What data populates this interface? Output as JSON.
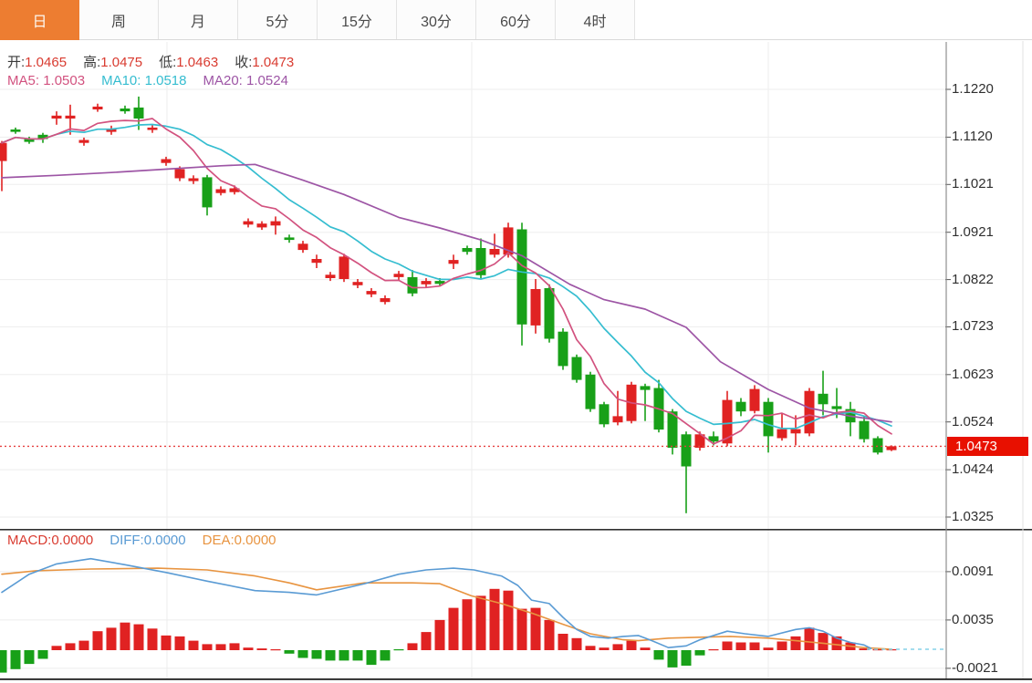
{
  "tab_bar": {
    "tabs": [
      {
        "name": "day",
        "label": "日",
        "active": true
      },
      {
        "name": "week",
        "label": "周",
        "active": false
      },
      {
        "name": "month",
        "label": "月",
        "active": false
      },
      {
        "name": "5min",
        "label": "5分",
        "active": false
      },
      {
        "name": "15min",
        "label": "15分",
        "active": false
      },
      {
        "name": "30min",
        "label": "30分",
        "active": false
      },
      {
        "name": "60min",
        "label": "60分",
        "active": false
      },
      {
        "name": "4hour",
        "label": "4时",
        "active": false
      }
    ]
  },
  "main_chart": {
    "legend": {
      "open_label": "开:",
      "open": "1.0465",
      "high_label": "高:",
      "high": "1.0475",
      "low_label": "低:",
      "low": "1.0463",
      "close_label": "收:",
      "close": "1.0473"
    },
    "ma_legend": {
      "ma5_label": "MA5:",
      "ma5": "1.0503",
      "ma10_label": "MA10:",
      "ma10": "1.0518",
      "ma20_label": "MA20:",
      "ma20": "1.0524"
    },
    "last_price_tag": "1.0473"
  },
  "macd_panel": {
    "legend": {
      "macd_label": "MACD:",
      "macd": "0.0000",
      "diff_label": "DIFF:",
      "diff": "0.0000",
      "dea_label": "DEA:",
      "dea": "0.0000"
    }
  },
  "colors": {
    "accent_orange": "#ed7d31",
    "up_red": "#e02222",
    "down_green": "#18a018",
    "ma5_pink": "#d2527f",
    "ma10_cyan": "#35bdd0",
    "ma20_purple": "#9d55a5",
    "diff_blue": "#5a9bd4",
    "dea_orange": "#e89440",
    "value_red": "#d93b30",
    "grid": "#ededed",
    "axis": "#909090",
    "price_line_red": "#e64040",
    "tag_red": "#e81000",
    "dashed_zero": "#85d2e8",
    "panel_divider": "#2f2f2f"
  },
  "chart_data": [
    {
      "type": "candlestick",
      "title": "EUR daily candlestick panel",
      "y_ticks": [
        1.122,
        1.112,
        1.1021,
        1.0921,
        1.0822,
        1.0723,
        1.0623,
        1.0524,
        1.0424,
        1.0325
      ],
      "price_line": 1.0473,
      "candles": [
        [
          1.107,
          1.1112,
          1.1007,
          1.1108
        ],
        [
          1.1136,
          1.114,
          1.1127,
          1.1131
        ],
        [
          1.1117,
          1.1121,
          1.1106,
          1.111
        ],
        [
          1.1125,
          1.1129,
          1.1108,
          1.1116
        ],
        [
          1.1159,
          1.1174,
          1.1146,
          1.1165
        ],
        [
          1.1159,
          1.1188,
          1.1125,
          1.1165
        ],
        [
          1.1108,
          1.1119,
          1.1102,
          1.1114
        ],
        [
          1.1178,
          1.119,
          1.1173,
          1.1184
        ],
        [
          1.1131,
          1.1144,
          1.1125,
          1.1138
        ],
        [
          1.118,
          1.1186,
          1.1169,
          1.1174
        ],
        [
          1.1182,
          1.1205,
          1.1135,
          1.1159
        ],
        [
          1.1135,
          1.1146,
          1.1129,
          1.114
        ],
        [
          1.1066,
          1.1079,
          1.106,
          1.1074
        ],
        [
          1.1034,
          1.1059,
          1.1028,
          1.1053
        ],
        [
          1.1028,
          1.104,
          1.1022,
          1.1034
        ],
        [
          1.1036,
          1.1041,
          1.0956,
          1.0973
        ],
        [
          1.1003,
          1.1017,
          1.0998,
          1.1011
        ],
        [
          1.1005,
          1.1019,
          1.1,
          1.1013
        ],
        [
          1.0937,
          1.095,
          1.0931,
          1.0944
        ],
        [
          1.0931,
          1.0944,
          1.0926,
          1.0939
        ],
        [
          1.0935,
          1.0954,
          1.0916,
          1.0944
        ],
        [
          1.091,
          1.0916,
          1.0899,
          1.0905
        ],
        [
          1.0884,
          1.0903,
          1.0878,
          1.0897
        ],
        [
          1.0857,
          1.0874,
          1.0846,
          1.0865
        ],
        [
          1.0825,
          1.0838,
          1.0819,
          1.0832
        ],
        [
          1.0823,
          1.0876,
          1.0817,
          1.087
        ],
        [
          1.081,
          1.0823,
          1.0804,
          1.0817
        ],
        [
          1.0791,
          1.0804,
          1.0785,
          1.0798
        ],
        [
          1.0775,
          1.0789,
          1.077,
          1.0783
        ],
        [
          1.0827,
          1.084,
          1.0821,
          1.0834
        ],
        [
          1.0827,
          1.0842,
          1.0787,
          1.0793
        ],
        [
          1.0812,
          1.0825,
          1.0806,
          1.0819
        ],
        [
          1.0819,
          1.0825,
          1.0808,
          1.0813
        ],
        [
          1.0855,
          1.0874,
          1.0844,
          1.0863
        ],
        [
          1.0888,
          1.0893,
          1.0874,
          1.088
        ],
        [
          1.0888,
          1.0908,
          1.0825,
          1.0831
        ],
        [
          1.0874,
          1.0918,
          1.0868,
          1.0886
        ],
        [
          1.0874,
          1.0941,
          1.0868,
          1.0931
        ],
        [
          1.0927,
          1.0941,
          1.0684,
          1.0728
        ],
        [
          1.0726,
          1.0823,
          1.0709,
          1.0802
        ],
        [
          1.0804,
          1.0812,
          1.069,
          1.0698
        ],
        [
          1.0713,
          1.072,
          1.0633,
          1.0641
        ],
        [
          1.066,
          1.0665,
          1.0606,
          1.0612
        ],
        [
          1.0623,
          1.0629,
          1.0545,
          1.0551
        ],
        [
          1.0561,
          1.0566,
          1.0513,
          1.0519
        ],
        [
          1.0523,
          1.0589,
          1.0517,
          1.0536
        ],
        [
          1.0526,
          1.0608,
          1.0521,
          1.0602
        ],
        [
          1.0599,
          1.0604,
          1.0526,
          1.0591
        ],
        [
          1.0595,
          1.0612,
          1.0502,
          1.0508
        ],
        [
          1.0546,
          1.0551,
          1.0456,
          1.047
        ],
        [
          1.0498,
          1.0504,
          1.0333,
          1.0431
        ],
        [
          1.047,
          1.0504,
          1.0464,
          1.0498
        ],
        [
          1.0494,
          1.0504,
          1.0475,
          1.0483
        ],
        [
          1.0479,
          1.0589,
          1.0473,
          1.057
        ],
        [
          1.0566,
          1.0574,
          1.0536,
          1.0546
        ],
        [
          1.0547,
          1.0601,
          1.0542,
          1.0593
        ],
        [
          1.0566,
          1.0574,
          1.046,
          1.0494
        ],
        [
          1.049,
          1.0542,
          1.0485,
          1.0509
        ],
        [
          1.05,
          1.0538,
          1.0475,
          1.0509
        ],
        [
          1.05,
          1.0595,
          1.0494,
          1.0589
        ],
        [
          1.0583,
          1.0631,
          1.0538,
          1.0561
        ],
        [
          1.0557,
          1.0595,
          1.0532,
          1.0551
        ],
        [
          1.0551,
          1.0566,
          1.0494,
          1.0523
        ],
        [
          1.0526,
          1.0536,
          1.0481,
          1.0488
        ],
        [
          1.049,
          1.0494,
          1.0456,
          1.046
        ],
        [
          1.0465,
          1.0475,
          1.0463,
          1.0473
        ]
      ],
      "ma_series": [
        {
          "name": "MA5",
          "period": 5,
          "computed_from_closes": true
        },
        {
          "name": "MA10",
          "period": 10,
          "computed_from_closes": true
        },
        {
          "name": "MA20",
          "points": [
            [
              0,
              1.1035
            ],
            [
              4,
              1.104
            ],
            [
              8,
              1.1046
            ],
            [
              12,
              1.1053
            ],
            [
              16,
              1.106
            ],
            [
              18.5,
              1.1063
            ],
            [
              22,
              1.103
            ],
            [
              25,
              1.1
            ],
            [
              29,
              1.0952
            ],
            [
              32,
              1.093
            ],
            [
              35,
              1.0905
            ],
            [
              38,
              1.0872
            ],
            [
              41.5,
              1.0812
            ],
            [
              44,
              1.078
            ],
            [
              47,
              1.076
            ],
            [
              50,
              1.0722
            ],
            [
              52.5,
              1.065
            ],
            [
              56,
              1.0592
            ],
            [
              59,
              1.0553
            ],
            [
              62,
              1.0536
            ],
            [
              65,
              1.0524
            ]
          ]
        }
      ]
    },
    {
      "type": "macd",
      "y_ticks": [
        0.0091,
        0.0035,
        -0.0021
      ],
      "hist": [
        -0.0026,
        -0.0022,
        -0.0016,
        -0.001,
        0.0005,
        0.0008,
        0.0011,
        0.0022,
        0.0026,
        0.0032,
        0.003,
        0.0025,
        0.0017,
        0.0016,
        0.0011,
        0.0007,
        0.0007,
        0.0008,
        0.0003,
        0.0002,
        0.0001,
        -0.0004,
        -0.0009,
        -0.001,
        -0.0012,
        -0.0012,
        -0.0012,
        -0.0017,
        -0.0012,
        -0.0001,
        0.0008,
        0.0021,
        0.0035,
        0.0049,
        0.0059,
        0.0063,
        0.0071,
        0.0069,
        0.0048,
        0.0049,
        0.0035,
        0.0019,
        0.0014,
        0.0005,
        0.0003,
        0.0007,
        0.0011,
        0.0003,
        -0.0011,
        -0.002,
        -0.0018,
        -0.0006,
        0.0,
        0.001,
        0.0009,
        0.0009,
        0.0003,
        0.001,
        0.0016,
        0.0026,
        0.002,
        0.0016,
        0.0009,
        0.0002,
        0.0,
        0.0
      ],
      "diff": [
        [
          0,
          0.0067
        ],
        [
          2,
          0.0088
        ],
        [
          4,
          0.01
        ],
        [
          6.5,
          0.0106
        ],
        [
          9,
          0.0099
        ],
        [
          12,
          0.009
        ],
        [
          15,
          0.008
        ],
        [
          18.5,
          0.0069
        ],
        [
          21,
          0.0067
        ],
        [
          23,
          0.0064
        ],
        [
          26.5,
          0.0077
        ],
        [
          29,
          0.0088
        ],
        [
          31,
          0.0093
        ],
        [
          33,
          0.0095
        ],
        [
          34.5,
          0.0093
        ],
        [
          36.5,
          0.0086
        ],
        [
          37.7,
          0.0075
        ],
        [
          38.7,
          0.0058
        ],
        [
          40,
          0.0054
        ],
        [
          41,
          0.0038
        ],
        [
          42,
          0.0024
        ],
        [
          43,
          0.0016
        ],
        [
          44.3,
          0.0014
        ],
        [
          45.4,
          0.0016
        ],
        [
          46.5,
          0.0017
        ],
        [
          47.5,
          0.0011
        ],
        [
          48.7,
          0.0003
        ],
        [
          50,
          0.0005
        ],
        [
          51,
          0.0012
        ],
        [
          53,
          0.0022
        ],
        [
          54.3,
          0.0019
        ],
        [
          56,
          0.0016
        ],
        [
          58,
          0.0024
        ],
        [
          59,
          0.0026
        ],
        [
          60,
          0.0022
        ],
        [
          61,
          0.0014
        ],
        [
          62,
          0.0009
        ],
        [
          63,
          0.0006
        ],
        [
          63.5,
          0.0002
        ]
      ],
      "dea": [
        [
          0,
          0.0088
        ],
        [
          2.5,
          0.0092
        ],
        [
          6.5,
          0.0094
        ],
        [
          11.4,
          0.0095
        ],
        [
          15,
          0.0093
        ],
        [
          18.5,
          0.0086
        ],
        [
          21,
          0.0078
        ],
        [
          23,
          0.007
        ],
        [
          26.5,
          0.0078
        ],
        [
          30,
          0.0078
        ],
        [
          32,
          0.0077
        ],
        [
          34.3,
          0.0063
        ],
        [
          36.5,
          0.0054
        ],
        [
          38.7,
          0.0043
        ],
        [
          41,
          0.003
        ],
        [
          43,
          0.0019
        ],
        [
          45.4,
          0.0012
        ],
        [
          46.5,
          0.0011
        ],
        [
          48.7,
          0.0014
        ],
        [
          51,
          0.0015
        ],
        [
          53.2,
          0.0016
        ],
        [
          56,
          0.0014
        ],
        [
          58,
          0.0011
        ],
        [
          60,
          0.0008
        ],
        [
          63,
          0.0003
        ],
        [
          65,
          0.0001
        ]
      ],
      "zero_dashed_line": true
    }
  ]
}
